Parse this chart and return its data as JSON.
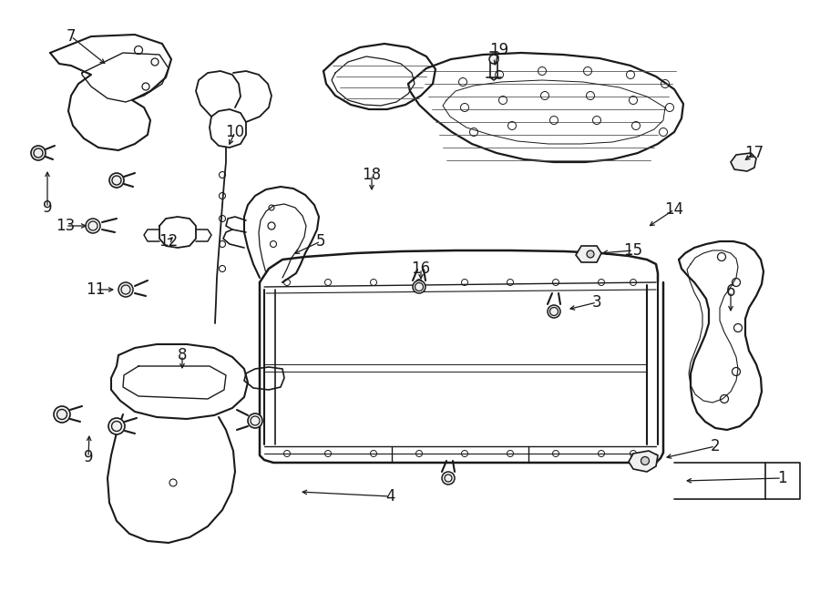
{
  "bg": "#ffffff",
  "lc": "#1a1a1a",
  "fig_w": 9.0,
  "fig_h": 6.61,
  "dpi": 100,
  "label_size": 11,
  "parts": {
    "labels": [
      [
        "7",
        78,
        42
      ],
      [
        "9",
        52,
        228
      ],
      [
        "9",
        97,
        502
      ],
      [
        "10",
        258,
        148
      ],
      [
        "11",
        105,
        318
      ],
      [
        "12",
        185,
        268
      ],
      [
        "13",
        72,
        248
      ],
      [
        "8",
        200,
        392
      ],
      [
        "5",
        352,
        268
      ],
      [
        "18",
        408,
        192
      ],
      [
        "19",
        548,
        58
      ],
      [
        "16",
        462,
        298
      ],
      [
        "15",
        695,
        278
      ],
      [
        "14",
        740,
        232
      ],
      [
        "17",
        828,
        172
      ],
      [
        "3",
        655,
        335
      ],
      [
        "6",
        802,
        322
      ],
      [
        "2",
        785,
        492
      ],
      [
        "4",
        428,
        548
      ],
      [
        "1",
        858,
        528
      ]
    ]
  }
}
